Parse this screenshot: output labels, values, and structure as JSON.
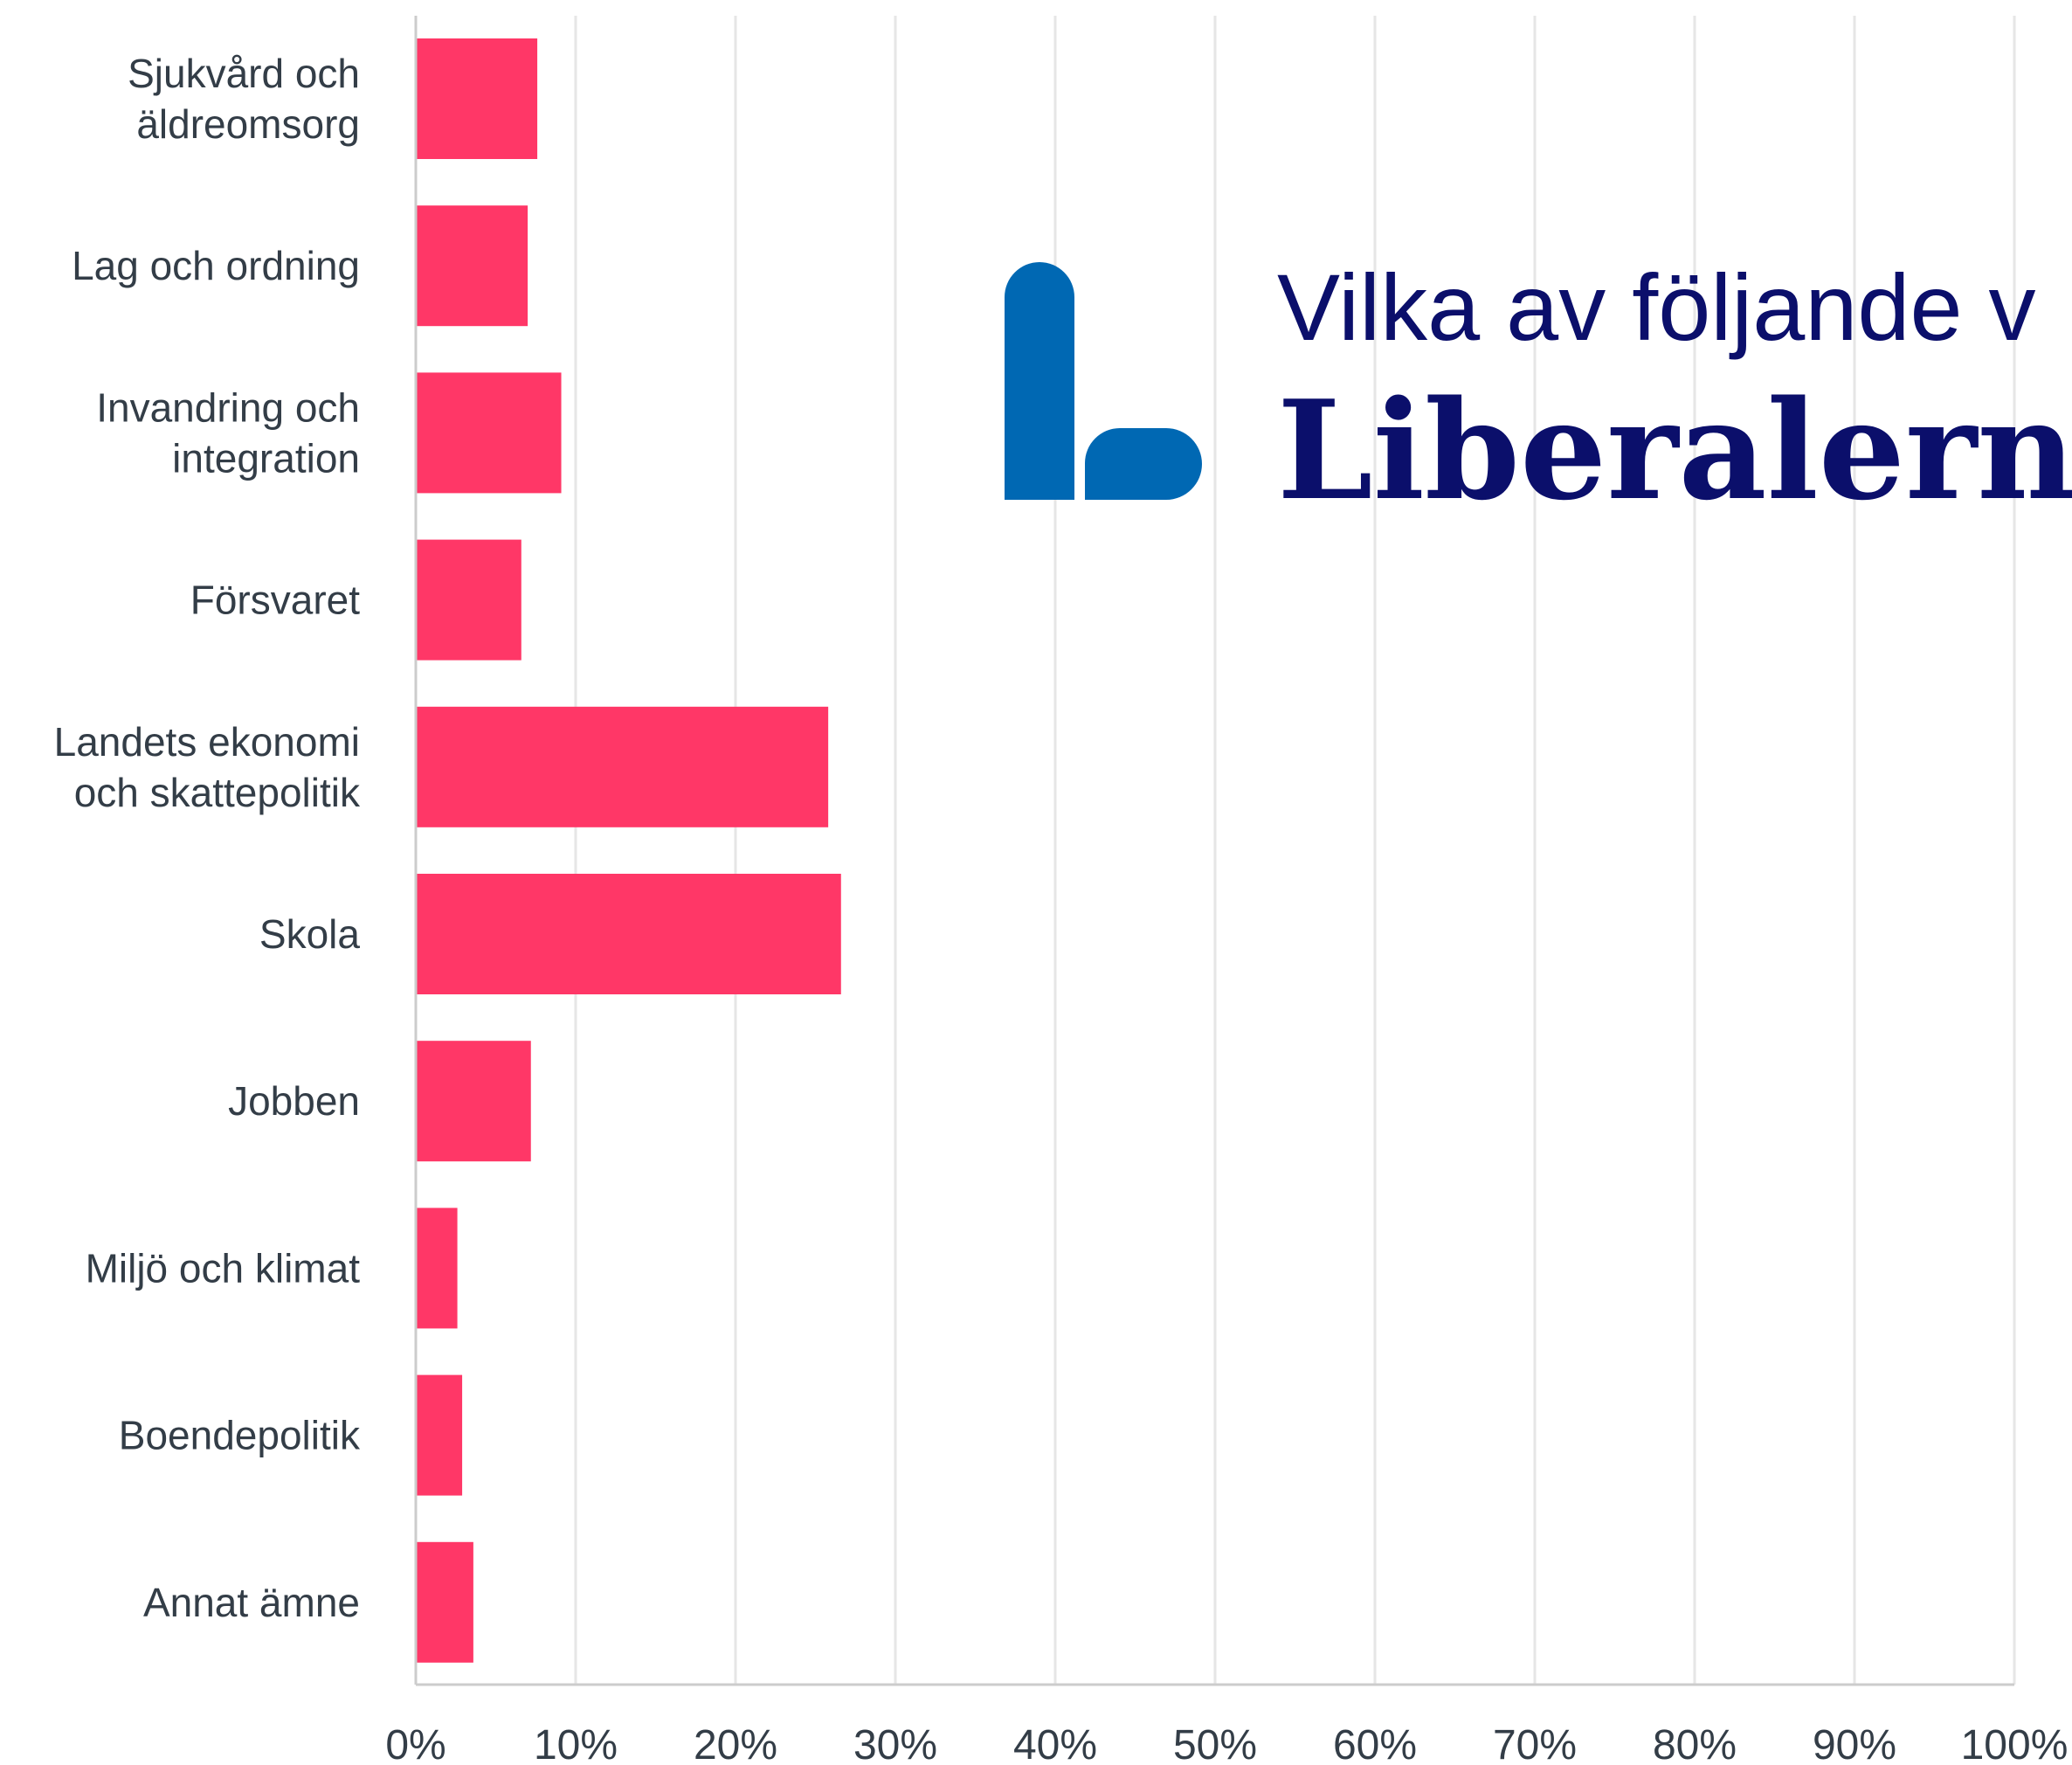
{
  "colors": {
    "bar": "#ff3767",
    "grid": "#e6e6e6",
    "axis": "#cccccc",
    "text": "#333d47",
    "title": "#0b0f6b",
    "logo": "#0068b3"
  },
  "logo": {
    "icon": "liberalerna-l-logo-icon"
  },
  "title": {
    "line1": "Vilka av följande v",
    "line2": "Liberalern"
  },
  "chart_data": {
    "type": "bar",
    "orientation": "horizontal",
    "title": "",
    "xlabel": "",
    "ylabel": "",
    "xlim": [
      0,
      100
    ],
    "grid": true,
    "categories": [
      [
        "Sjukvård och",
        "äldreomsorg"
      ],
      [
        "Lag och ordning"
      ],
      [
        "Invandring och",
        "integration"
      ],
      [
        "Försvaret"
      ],
      [
        "Landets ekonomi",
        "och skattepolitik"
      ],
      [
        "Skola"
      ],
      [
        "Jobben"
      ],
      [
        "Miljö och klimat"
      ],
      [
        "Boendepolitik"
      ],
      [
        "Annat ämne"
      ]
    ],
    "values": [
      7.6,
      7.0,
      9.1,
      6.6,
      25.8,
      26.6,
      7.2,
      2.6,
      2.9,
      3.6
    ],
    "x_ticks": [
      "0%",
      "10%",
      "20%",
      "30%",
      "40%",
      "50%",
      "60%",
      "70%",
      "80%",
      "90%",
      "100%"
    ]
  }
}
